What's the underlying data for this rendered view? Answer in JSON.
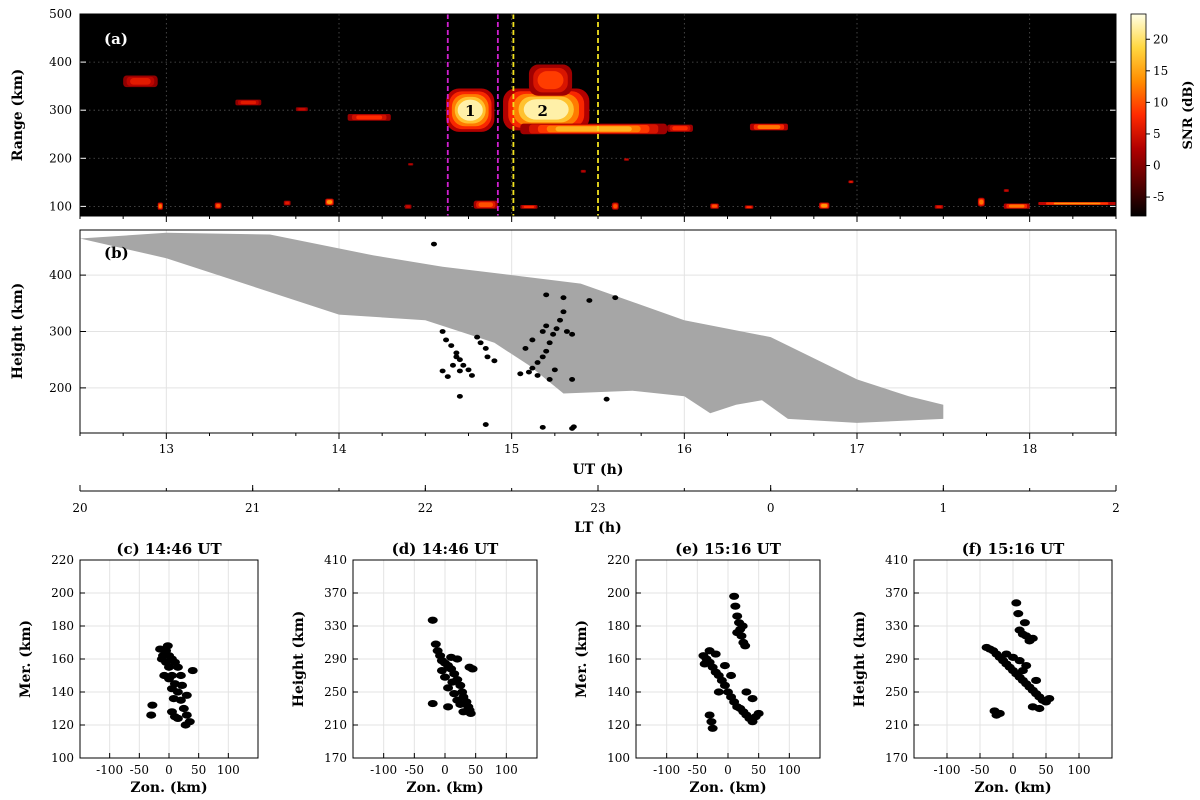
{
  "colors": {
    "radar_background": "#000000",
    "irregularity_fill": "#a6a6a6",
    "points": "#000000",
    "magenta_line": "#d020d0",
    "yellow_line": "#f0e020",
    "colormap": [
      "#000000",
      "#5a0000",
      "#b00000",
      "#ff2a00",
      "#ff8c00",
      "#ffd740",
      "#ffffe6"
    ]
  },
  "chart_data": [
    {
      "id": "a",
      "type": "heatmap",
      "panel_label": "(a)",
      "ylabel": "Range (km)",
      "xlim": [
        12.5,
        18.5
      ],
      "ylim": [
        80,
        500
      ],
      "yticks": [
        100,
        200,
        300,
        400,
        500
      ],
      "colorbar": {
        "label": "SNR (dB)",
        "range": [
          -8,
          24
        ],
        "ticks": [
          -5,
          0,
          5,
          10,
          15,
          20
        ]
      },
      "vertical_lines": [
        {
          "x": 14.63,
          "color": "magenta"
        },
        {
          "x": 14.92,
          "color": "magenta"
        },
        {
          "x": 15.01,
          "color": "yellow"
        },
        {
          "x": 15.5,
          "color": "yellow"
        }
      ],
      "annotations": [
        {
          "text": "1",
          "x": 14.76,
          "y": 298
        },
        {
          "text": "2",
          "x": 15.18,
          "y": 298
        }
      ],
      "echoes": [
        {
          "t0": 14.62,
          "t1": 14.9,
          "r0": 255,
          "r1": 345,
          "snr": 22
        },
        {
          "t0": 14.95,
          "t1": 15.45,
          "r0": 258,
          "r1": 345,
          "snr": 22
        },
        {
          "t0": 15.1,
          "t1": 15.35,
          "r0": 330,
          "r1": 395,
          "snr": 9
        },
        {
          "t0": 15.05,
          "t1": 15.9,
          "r0": 250,
          "r1": 272,
          "snr": 16
        },
        {
          "t0": 15.9,
          "t1": 16.05,
          "r0": 255,
          "r1": 270,
          "snr": 8
        },
        {
          "t0": 16.38,
          "t1": 16.6,
          "r0": 258,
          "r1": 272,
          "snr": 12
        },
        {
          "t0": 14.05,
          "t1": 14.3,
          "r0": 278,
          "r1": 292,
          "snr": 8
        },
        {
          "t0": 13.4,
          "t1": 13.55,
          "r0": 310,
          "r1": 322,
          "snr": 6
        },
        {
          "t0": 12.75,
          "t1": 12.95,
          "r0": 348,
          "r1": 372,
          "snr": 6
        },
        {
          "t0": 13.75,
          "t1": 13.82,
          "r0": 298,
          "r1": 306,
          "snr": 4
        },
        {
          "t0": 12.95,
          "t1": 12.98,
          "r0": 93,
          "r1": 108,
          "snr": 12
        },
        {
          "t0": 13.28,
          "t1": 13.32,
          "r0": 95,
          "r1": 108,
          "snr": 10
        },
        {
          "t0": 13.68,
          "t1": 13.72,
          "r0": 102,
          "r1": 112,
          "snr": 6
        },
        {
          "t0": 13.92,
          "t1": 13.97,
          "r0": 102,
          "r1": 116,
          "snr": 14
        },
        {
          "t0": 14.38,
          "t1": 14.42,
          "r0": 95,
          "r1": 104,
          "snr": 4
        },
        {
          "t0": 14.78,
          "t1": 14.92,
          "r0": 95,
          "r1": 112,
          "snr": 10
        },
        {
          "t0": 15.05,
          "t1": 15.15,
          "r0": 95,
          "r1": 103,
          "snr": 8
        },
        {
          "t0": 15.58,
          "t1": 15.62,
          "r0": 93,
          "r1": 108,
          "snr": 10
        },
        {
          "t0": 16.15,
          "t1": 16.2,
          "r0": 95,
          "r1": 106,
          "snr": 10
        },
        {
          "t0": 16.35,
          "t1": 16.4,
          "r0": 95,
          "r1": 102,
          "snr": 8
        },
        {
          "t0": 16.78,
          "t1": 16.84,
          "r0": 95,
          "r1": 108,
          "snr": 14
        },
        {
          "t0": 17.45,
          "t1": 17.5,
          "r0": 95,
          "r1": 103,
          "snr": 6
        },
        {
          "t0": 17.7,
          "t1": 17.74,
          "r0": 100,
          "r1": 118,
          "snr": 12
        },
        {
          "t0": 17.85,
          "t1": 18.0,
          "r0": 95,
          "r1": 106,
          "snr": 12
        },
        {
          "t0": 18.05,
          "t1": 18.5,
          "r0": 103,
          "r1": 109,
          "snr": 14
        },
        {
          "t0": 15.65,
          "t1": 15.68,
          "r0": 195,
          "r1": 200,
          "snr": 4
        },
        {
          "t0": 16.95,
          "t1": 16.98,
          "r0": 148,
          "r1": 154,
          "snr": 6
        },
        {
          "t0": 17.85,
          "t1": 17.88,
          "r0": 130,
          "r1": 136,
          "snr": 4
        },
        {
          "t0": 14.4,
          "t1": 14.43,
          "r0": 185,
          "r1": 190,
          "snr": 3
        },
        {
          "t0": 15.4,
          "t1": 15.43,
          "r0": 170,
          "r1": 176,
          "snr": 3
        }
      ]
    },
    {
      "id": "b",
      "type": "scatter",
      "panel_label": "(b)",
      "xlabel": "UT (h)",
      "ylabel": "Height (km)",
      "xlim": [
        12.5,
        18.5
      ],
      "ylim": [
        120,
        480
      ],
      "xticks": [
        13,
        14,
        15,
        16,
        17,
        18
      ],
      "yticks": [
        200,
        300,
        400
      ],
      "lt_axis": {
        "label": "LT (h)",
        "ticks": [
          {
            "ut": 12.5,
            "label": "20"
          },
          {
            "ut": 13.5,
            "label": "21"
          },
          {
            "ut": 14.5,
            "label": "22"
          },
          {
            "ut": 15.5,
            "label": "23"
          },
          {
            "ut": 16.5,
            "label": "0"
          },
          {
            "ut": 17.5,
            "label": "1"
          },
          {
            "ut": 18.5,
            "label": "2"
          }
        ]
      },
      "irregularity_region": {
        "upper_boundary": [
          [
            12.5,
            465
          ],
          [
            13.0,
            475
          ],
          [
            13.6,
            472
          ],
          [
            14.2,
            435
          ],
          [
            14.6,
            415
          ],
          [
            15.0,
            400
          ],
          [
            15.4,
            385
          ],
          [
            16.0,
            320
          ],
          [
            16.5,
            290
          ],
          [
            17.0,
            215
          ],
          [
            17.3,
            185
          ],
          [
            17.5,
            170
          ]
        ],
        "lower_boundary": [
          [
            17.5,
            145
          ],
          [
            17.0,
            138
          ],
          [
            16.6,
            145
          ],
          [
            16.45,
            178
          ],
          [
            16.3,
            170
          ],
          [
            16.15,
            155
          ],
          [
            16.0,
            185
          ],
          [
            15.7,
            195
          ],
          [
            15.3,
            190
          ],
          [
            15.1,
            240
          ],
          [
            14.9,
            280
          ],
          [
            14.7,
            300
          ],
          [
            14.5,
            320
          ],
          [
            14.0,
            330
          ],
          [
            13.5,
            380
          ],
          [
            13.0,
            430
          ],
          [
            12.5,
            465
          ]
        ]
      },
      "points": [
        [
          14.6,
          300
        ],
        [
          14.62,
          285
        ],
        [
          14.65,
          275
        ],
        [
          14.68,
          262
        ],
        [
          14.7,
          250
        ],
        [
          14.72,
          240
        ],
        [
          14.75,
          232
        ],
        [
          14.77,
          222
        ],
        [
          14.7,
          230
        ],
        [
          14.8,
          290
        ],
        [
          14.82,
          280
        ],
        [
          14.85,
          270
        ],
        [
          14.86,
          255
        ],
        [
          14.9,
          248
        ],
        [
          14.6,
          230
        ],
        [
          14.63,
          220
        ],
        [
          14.66,
          240
        ],
        [
          14.68,
          255
        ],
        [
          15.05,
          225
        ],
        [
          15.1,
          228
        ],
        [
          15.12,
          235
        ],
        [
          15.15,
          245
        ],
        [
          15.18,
          255
        ],
        [
          15.2,
          265
        ],
        [
          15.22,
          280
        ],
        [
          15.24,
          295
        ],
        [
          15.26,
          305
        ],
        [
          15.28,
          320
        ],
        [
          15.3,
          335
        ],
        [
          15.18,
          300
        ],
        [
          15.2,
          310
        ],
        [
          15.32,
          300
        ],
        [
          15.35,
          295
        ],
        [
          15.25,
          232
        ],
        [
          15.15,
          222
        ],
        [
          15.22,
          215
        ],
        [
          15.08,
          270
        ],
        [
          15.12,
          285
        ],
        [
          14.55,
          455
        ],
        [
          15.2,
          365
        ],
        [
          15.3,
          360
        ],
        [
          15.45,
          355
        ],
        [
          15.6,
          360
        ],
        [
          15.35,
          215
        ],
        [
          15.55,
          180
        ],
        [
          14.7,
          185
        ],
        [
          14.85,
          135
        ],
        [
          15.18,
          130
        ],
        [
          15.35,
          128
        ],
        [
          15.36,
          131
        ]
      ]
    },
    {
      "id": "c",
      "type": "scatter",
      "title": "(c) 14:46 UT",
      "xlabel": "Zon. (km)",
      "ylabel": "Mer. (km)",
      "xlim": [
        -150,
        150
      ],
      "ylim": [
        100,
        220
      ],
      "xticks": [
        -100,
        -50,
        0,
        50,
        100
      ],
      "yticks": [
        100,
        120,
        140,
        160,
        180,
        200,
        220
      ],
      "points": [
        [
          -10,
          162
        ],
        [
          -5,
          158
        ],
        [
          0,
          155
        ],
        [
          5,
          150
        ],
        [
          10,
          145
        ],
        [
          15,
          140
        ],
        [
          20,
          135
        ],
        [
          25,
          130
        ],
        [
          30,
          126
        ],
        [
          35,
          122
        ],
        [
          -5,
          165
        ],
        [
          0,
          162
        ],
        [
          5,
          160
        ],
        [
          10,
          158
        ],
        [
          15,
          155
        ],
        [
          20,
          150
        ],
        [
          10,
          125
        ],
        [
          15,
          124
        ],
        [
          5,
          128
        ],
        [
          0,
          148
        ],
        [
          5,
          142
        ],
        [
          -8,
          150
        ],
        [
          -12,
          160
        ],
        [
          -15,
          166
        ],
        [
          -2,
          168
        ],
        [
          8,
          136
        ],
        [
          28,
          120
        ],
        [
          40,
          153
        ],
        [
          -30,
          126
        ],
        [
          -28,
          132
        ],
        [
          30,
          138
        ],
        [
          22,
          144
        ]
      ]
    },
    {
      "id": "d",
      "type": "scatter",
      "title": "(d) 14:46 UT",
      "xlabel": "Zon. (km)",
      "ylabel": "Height (km)",
      "xlim": [
        -150,
        150
      ],
      "ylim": [
        170,
        410
      ],
      "xticks": [
        -100,
        -50,
        0,
        50,
        100
      ],
      "yticks": [
        170,
        210,
        250,
        290,
        330,
        370,
        410
      ],
      "points": [
        [
          -20,
          337
        ],
        [
          -20,
          236
        ],
        [
          -15,
          308
        ],
        [
          -12,
          300
        ],
        [
          -8,
          294
        ],
        [
          -5,
          288
        ],
        [
          0,
          285
        ],
        [
          5,
          282
        ],
        [
          10,
          278
        ],
        [
          15,
          272
        ],
        [
          20,
          265
        ],
        [
          25,
          258
        ],
        [
          28,
          250
        ],
        [
          30,
          244
        ],
        [
          35,
          238
        ],
        [
          38,
          232
        ],
        [
          40,
          228
        ],
        [
          42,
          224
        ],
        [
          20,
          240
        ],
        [
          25,
          235
        ],
        [
          10,
          292
        ],
        [
          20,
          290
        ],
        [
          40,
          280
        ],
        [
          45,
          278
        ],
        [
          0,
          268
        ],
        [
          5,
          255
        ],
        [
          15,
          248
        ],
        [
          5,
          232
        ],
        [
          30,
          226
        ],
        [
          -5,
          276
        ],
        [
          12,
          262
        ]
      ]
    },
    {
      "id": "e",
      "type": "scatter",
      "title": "(e) 15:16 UT",
      "xlabel": "Zon. (km)",
      "ylabel": "Mer. (km)",
      "xlim": [
        -150,
        150
      ],
      "ylim": [
        100,
        220
      ],
      "xticks": [
        -100,
        -50,
        0,
        50,
        100
      ],
      "yticks": [
        100,
        120,
        140,
        160,
        180,
        200,
        220
      ],
      "points": [
        [
          -40,
          162
        ],
        [
          -35,
          160
        ],
        [
          -30,
          158
        ],
        [
          -25,
          155
        ],
        [
          -20,
          152
        ],
        [
          -15,
          150
        ],
        [
          -10,
          147
        ],
        [
          -5,
          144
        ],
        [
          0,
          140
        ],
        [
          5,
          137
        ],
        [
          10,
          134
        ],
        [
          15,
          131
        ],
        [
          20,
          130
        ],
        [
          25,
          128
        ],
        [
          30,
          126
        ],
        [
          35,
          124
        ],
        [
          40,
          122
        ],
        [
          45,
          125
        ],
        [
          50,
          127
        ],
        [
          -30,
          165
        ],
        [
          -20,
          163
        ],
        [
          -38,
          157
        ],
        [
          10,
          198
        ],
        [
          12,
          192
        ],
        [
          15,
          186
        ],
        [
          18,
          182
        ],
        [
          20,
          178
        ],
        [
          22,
          174
        ],
        [
          25,
          170
        ],
        [
          28,
          168
        ],
        [
          15,
          176
        ],
        [
          24,
          180
        ],
        [
          -30,
          126
        ],
        [
          -27,
          122
        ],
        [
          -25,
          118
        ],
        [
          -5,
          156
        ],
        [
          5,
          150
        ],
        [
          30,
          140
        ],
        [
          40,
          136
        ],
        [
          -15,
          140
        ]
      ]
    },
    {
      "id": "f",
      "type": "scatter",
      "title": "(f) 15:16 UT",
      "xlabel": "Zon. (km)",
      "ylabel": "Height (km)",
      "xlim": [
        -150,
        150
      ],
      "ylim": [
        170,
        410
      ],
      "xticks": [
        -100,
        -50,
        0,
        50,
        100
      ],
      "yticks": [
        170,
        210,
        250,
        290,
        330,
        370,
        410
      ],
      "points": [
        [
          -40,
          304
        ],
        [
          -35,
          302
        ],
        [
          -30,
          300
        ],
        [
          -25,
          296
        ],
        [
          -20,
          292
        ],
        [
          -15,
          288
        ],
        [
          -10,
          284
        ],
        [
          -5,
          280
        ],
        [
          0,
          276
        ],
        [
          5,
          272
        ],
        [
          10,
          268
        ],
        [
          15,
          264
        ],
        [
          20,
          260
        ],
        [
          25,
          256
        ],
        [
          30,
          252
        ],
        [
          35,
          248
        ],
        [
          40,
          244
        ],
        [
          45,
          240
        ],
        [
          50,
          238
        ],
        [
          55,
          242
        ],
        [
          -10,
          296
        ],
        [
          0,
          292
        ],
        [
          10,
          288
        ],
        [
          20,
          282
        ],
        [
          5,
          358
        ],
        [
          8,
          345
        ],
        [
          10,
          325
        ],
        [
          15,
          320
        ],
        [
          20,
          318
        ],
        [
          25,
          312
        ],
        [
          30,
          315
        ],
        [
          18,
          334
        ],
        [
          -28,
          227
        ],
        [
          -25,
          222
        ],
        [
          -20,
          224
        ],
        [
          30,
          232
        ],
        [
          40,
          230
        ],
        [
          15,
          276
        ],
        [
          35,
          264
        ]
      ]
    }
  ]
}
